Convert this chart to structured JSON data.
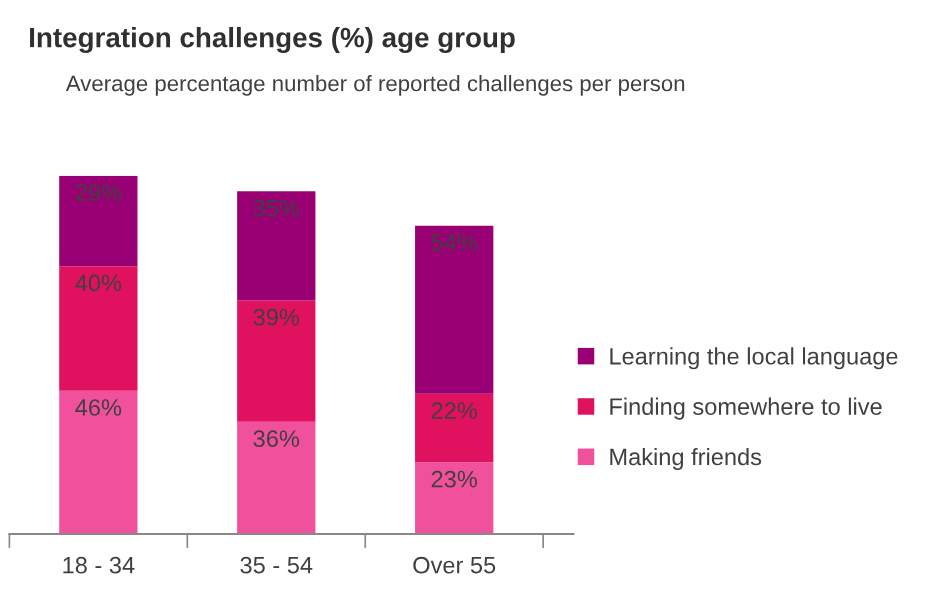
{
  "chart_data": {
    "type": "bar",
    "title": "Integration challenges (%) age group",
    "subtitle": "Average percentage number of reported challenges per person",
    "categories": [
      "18 - 34",
      "35 - 54",
      "Over 55"
    ],
    "stacked": true,
    "legend": "right",
    "grid": false,
    "series": [
      {
        "name": "Making friends",
        "color": "#f0509c",
        "values": [
          46,
          36,
          23
        ],
        "value_labels": [
          "46%",
          "36%",
          "23%"
        ]
      },
      {
        "name": "Finding somewhere to live",
        "color": "#e0115f",
        "values": [
          40,
          39,
          22
        ],
        "value_labels": [
          "40%",
          "39%",
          "22%"
        ]
      },
      {
        "name": "Learning the local language",
        "color": "#990073",
        "values": [
          29,
          35,
          54
        ],
        "value_labels": [
          "29%",
          "35%",
          "54%"
        ]
      }
    ]
  }
}
